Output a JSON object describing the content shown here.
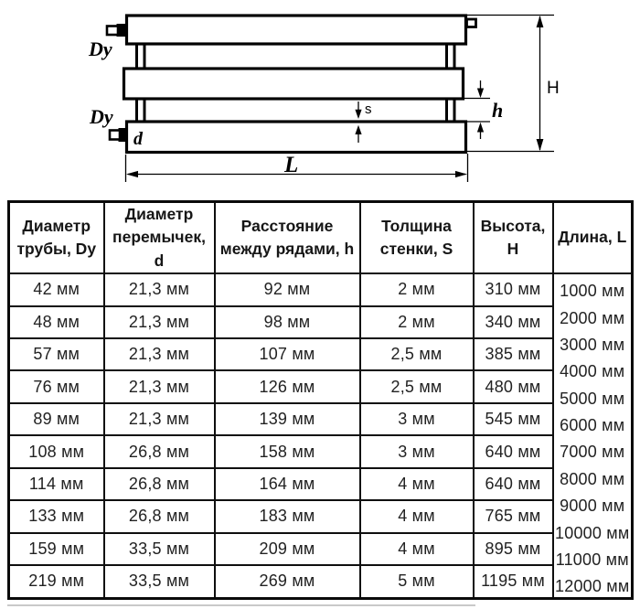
{
  "diagram": {
    "labels": {
      "dy_top": "Dy",
      "dy_bottom": "Dy",
      "d": "d",
      "s": "s",
      "h": "h",
      "H": "H",
      "L": "L"
    }
  },
  "table": {
    "columns": [
      "Диаметр трубы, Dy",
      "Диаметр перемычек, d",
      "Расстояние между рядами, h",
      "Толщина стенки, S",
      "Высота, H",
      "Длина, L"
    ],
    "rows": [
      [
        "42 мм",
        "21,3 мм",
        "92 мм",
        "2 мм",
        "310 мм"
      ],
      [
        "48 мм",
        "21,3 мм",
        "98 мм",
        "2 мм",
        "340 мм"
      ],
      [
        "57 мм",
        "21,3 мм",
        "107 мм",
        "2,5 мм",
        "385 мм"
      ],
      [
        "76 мм",
        "21,3 мм",
        "126 мм",
        "2,5 мм",
        "480 мм"
      ],
      [
        "89 мм",
        "21,3 мм",
        "139 мм",
        "3 мм",
        "545 мм"
      ],
      [
        "108 мм",
        "26,8 мм",
        "158 мм",
        "3 мм",
        "640 мм"
      ],
      [
        "114 мм",
        "26,8 мм",
        "164 мм",
        "4 мм",
        "640 мм"
      ],
      [
        "133 мм",
        "26,8 мм",
        "183 мм",
        "4 мм",
        "765 мм"
      ],
      [
        "159 мм",
        "33,5 мм",
        "209 мм",
        "4 мм",
        "895 мм"
      ],
      [
        "219 мм",
        "33,5 мм",
        "269 мм",
        "5 мм",
        "1195 мм"
      ]
    ],
    "length_values": [
      "1000 мм",
      "2000 мм",
      "3000 мм",
      "4000 мм",
      "5000 мм",
      "6000 мм",
      "7000 мм",
      "8000 мм",
      "9000 мм",
      "10000 мм",
      "11000 мм",
      "12000 мм"
    ]
  },
  "colors": {
    "line": "#000000",
    "text": "#222222",
    "background": "#ffffff"
  }
}
